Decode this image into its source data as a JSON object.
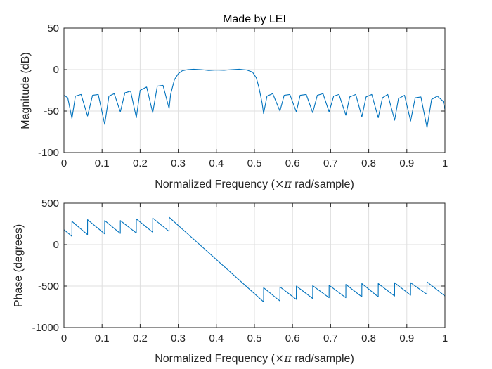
{
  "chart_data": [
    {
      "type": "line",
      "title": "Made by LEI",
      "xlabel_prefix": "Normalized Frequency  (",
      "xlabel_symbol": "×π",
      "xlabel_suffix": " rad/sample)",
      "ylabel": "Magnitude (dB)",
      "xlim": [
        0,
        1
      ],
      "ylim": [
        -100,
        50
      ],
      "xticks": [
        0,
        0.1,
        0.2,
        0.3,
        0.4,
        0.5,
        0.6,
        0.7,
        0.8,
        0.9,
        1
      ],
      "xtick_labels": [
        "0",
        "0.1",
        "0.2",
        "0.3",
        "0.4",
        "0.5",
        "0.6",
        "0.7",
        "0.8",
        "0.9",
        "1"
      ],
      "yticks": [
        -100,
        -50,
        0,
        50
      ],
      "ytick_labels": [
        "-100",
        "-50",
        "0",
        "50"
      ],
      "grid": true,
      "line_color": "#0072BD",
      "series": [
        {
          "name": "magnitude",
          "x": [
            0,
            0.01,
            0.021,
            0.03,
            0.045,
            0.062,
            0.075,
            0.09,
            0.107,
            0.118,
            0.132,
            0.148,
            0.16,
            0.175,
            0.19,
            0.2,
            0.217,
            0.233,
            0.245,
            0.26,
            0.276,
            0.28,
            0.29,
            0.3,
            0.31,
            0.325,
            0.34,
            0.36,
            0.38,
            0.4,
            0.42,
            0.44,
            0.46,
            0.48,
            0.495,
            0.505,
            0.512,
            0.52,
            0.524,
            0.533,
            0.548,
            0.567,
            0.578,
            0.593,
            0.61,
            0.62,
            0.636,
            0.653,
            0.665,
            0.68,
            0.696,
            0.708,
            0.722,
            0.74,
            0.75,
            0.766,
            0.782,
            0.793,
            0.808,
            0.825,
            0.836,
            0.85,
            0.868,
            0.878,
            0.894,
            0.91,
            0.922,
            0.937,
            0.953,
            0.965,
            0.98,
            0.995,
            1
          ],
          "y": [
            -31,
            -34,
            -59,
            -32,
            -30,
            -56,
            -31,
            -30,
            -66,
            -32,
            -29,
            -51,
            -28,
            -26,
            -58,
            -25,
            -21,
            -52,
            -20,
            -19,
            -47,
            -30,
            -12,
            -5,
            -1.5,
            0,
            0.5,
            0,
            -1,
            -0.5,
            -0.8,
            0,
            0.5,
            -0.5,
            -3,
            -10,
            -22,
            -40,
            -53,
            -32,
            -29,
            -50,
            -31,
            -30,
            -51,
            -31,
            -30,
            -52,
            -31,
            -29,
            -51,
            -32,
            -30,
            -55,
            -33,
            -30,
            -57,
            -33,
            -30,
            -58,
            -34,
            -30,
            -61,
            -35,
            -31,
            -62,
            -34,
            -33,
            -70,
            -36,
            -32,
            -38,
            -48
          ]
        }
      ]
    },
    {
      "type": "line",
      "title": "",
      "xlabel_prefix": "Normalized Frequency  (",
      "xlabel_symbol": "×π",
      "xlabel_suffix": " rad/sample)",
      "ylabel": "Phase (degrees)",
      "xlim": [
        0,
        1
      ],
      "ylim": [
        -1000,
        500
      ],
      "xticks": [
        0,
        0.1,
        0.2,
        0.3,
        0.4,
        0.5,
        0.6,
        0.7,
        0.8,
        0.9,
        1
      ],
      "xtick_labels": [
        "0",
        "0.1",
        "0.2",
        "0.3",
        "0.4",
        "0.5",
        "0.6",
        "0.7",
        "0.8",
        "0.9",
        "1"
      ],
      "yticks": [
        -1000,
        -500,
        0,
        500
      ],
      "ytick_labels": [
        "-1000",
        "-500",
        "0",
        "500"
      ],
      "grid": true,
      "line_color": "#0072BD",
      "series": [
        {
          "name": "phase",
          "x": [
            0,
            0.0209,
            0.021,
            0.0619,
            0.062,
            0.1069,
            0.107,
            0.1479,
            0.148,
            0.1899,
            0.19,
            0.2329,
            0.233,
            0.2759,
            0.276,
            0.524,
            0.5241,
            0.5669,
            0.567,
            0.6099,
            0.61,
            0.6529,
            0.653,
            0.6959,
            0.696,
            0.7399,
            0.74,
            0.7819,
            0.782,
            0.8249,
            0.825,
            0.8679,
            0.868,
            0.9099,
            0.91,
            0.9529,
            0.953,
            1
          ],
          "y": [
            180,
            100,
            280,
            120,
            300,
            130,
            290,
            135,
            290,
            140,
            310,
            150,
            320,
            160,
            330,
            -690,
            -520,
            -680,
            -510,
            -660,
            -500,
            -650,
            -495,
            -640,
            -490,
            -640,
            -480,
            -630,
            -470,
            -630,
            -470,
            -620,
            -460,
            -610,
            -460,
            -600,
            -450,
            -620
          ]
        }
      ]
    }
  ]
}
